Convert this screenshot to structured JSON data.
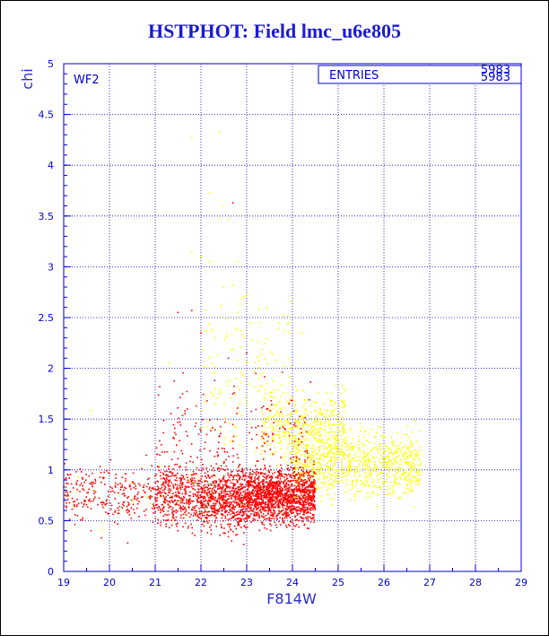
{
  "title": "HSTPHOT: Field lmc_u6e805",
  "chart_data": {
    "type": "scatter",
    "title": "HSTPHOT: Field lmc_u6e805",
    "xlabel": "F814W",
    "ylabel": "chi",
    "xlim": [
      19,
      29
    ],
    "ylim": [
      0,
      5
    ],
    "x_ticks": [
      "19",
      "20",
      "21",
      "22",
      "23",
      "24",
      "25",
      "26",
      "27",
      "28",
      "29"
    ],
    "y_ticks": [
      "0",
      "0.5",
      "1",
      "1.5",
      "2",
      "2.5",
      "3",
      "3.5",
      "4",
      "4.5",
      "5"
    ],
    "grid": true,
    "panel_label": "WF2",
    "stats_box": {
      "label": "ENTRIES",
      "values": [
        "5983",
        "5983"
      ]
    },
    "series": [
      {
        "color": "#ff0000",
        "description_note": "",
        "groups": [
          {
            "x_range": [
              19.0,
              21.0
            ],
            "y_center": 0.75,
            "y_spread": 0.22,
            "count": 260
          },
          {
            "x_range": [
              21.0,
              22.0
            ],
            "y_center": 0.75,
            "y_spread": 0.25,
            "count": 420
          },
          {
            "x_range": [
              22.0,
              23.0
            ],
            "y_center": 0.72,
            "y_spread": 0.25,
            "count": 700
          },
          {
            "x_range": [
              23.0,
              24.5
            ],
            "y_center": 0.75,
            "y_spread": 0.22,
            "count": 1500
          },
          {
            "x_range": [
              21.0,
              24.5
            ],
            "y_center": 1.35,
            "y_spread": 0.45,
            "count": 180
          }
        ],
        "points": [
          [
            22.7,
            3.63
          ],
          [
            21.5,
            2.55
          ],
          [
            21.8,
            2.57
          ],
          [
            22.0,
            2.35
          ],
          [
            21.1,
            1.82
          ],
          [
            22.3,
            1.88
          ],
          [
            23.0,
            2.15
          ],
          [
            22.6,
            2.1
          ],
          [
            21.7,
            1.6
          ],
          [
            23.2,
            1.95
          ],
          [
            20.4,
            0.28
          ],
          [
            19.6,
            0.4
          ]
        ]
      },
      {
        "color": "#ffff00",
        "description_note": "",
        "groups": [
          {
            "x_range": [
              24.0,
              26.8
            ],
            "y_center": 1.05,
            "y_spread": 0.25,
            "count": 900
          },
          {
            "x_range": [
              23.3,
              25.2
            ],
            "y_center": 1.45,
            "y_spread": 0.3,
            "count": 450
          },
          {
            "x_range": [
              22.0,
              24.0
            ],
            "y_center": 2.0,
            "y_spread": 0.6,
            "count": 140
          },
          {
            "x_range": [
              19.0,
              22.5
            ],
            "y_center": 0.8,
            "y_spread": 0.3,
            "count": 30
          }
        ],
        "points": [
          [
            21.8,
            4.27
          ],
          [
            22.4,
            4.33
          ],
          [
            22.2,
            3.73
          ],
          [
            22.5,
            3.6
          ],
          [
            22.6,
            3.47
          ],
          [
            22.4,
            3.48
          ],
          [
            21.8,
            3.15
          ],
          [
            22.0,
            3.1
          ],
          [
            22.2,
            3.05
          ],
          [
            22.8,
            3.05
          ],
          [
            22.7,
            2.82
          ],
          [
            22.5,
            2.8
          ],
          [
            22.9,
            2.68
          ],
          [
            22.8,
            2.55
          ],
          [
            23.3,
            2.45
          ],
          [
            22.3,
            2.3
          ],
          [
            23.8,
            2.52
          ],
          [
            24.2,
            2.35
          ],
          [
            19.6,
            1.58
          ],
          [
            21.3,
            2.05
          ]
        ]
      }
    ]
  }
}
